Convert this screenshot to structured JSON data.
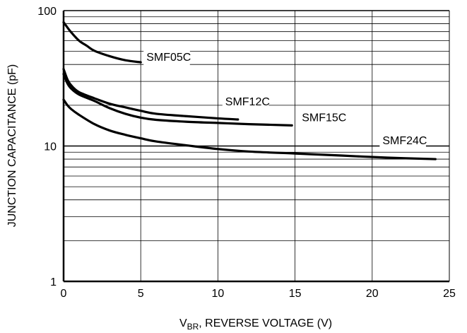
{
  "chart_data": {
    "type": "line",
    "title": "",
    "xlabel": {
      "main": "V",
      "subscript": "BR",
      "rest": ", REVERSE VOLTAGE (V)"
    },
    "ylabel": "JUNCTION CAPACITANCE (pF)",
    "xlim": [
      0,
      25
    ],
    "ylim": [
      1,
      100
    ],
    "yscale": "log",
    "grid": true,
    "x_ticks": [
      0,
      5,
      10,
      15,
      20,
      25
    ],
    "x_tick_labels": [
      "0",
      "5",
      "10",
      "15",
      "20",
      "25"
    ],
    "y_ticks": [
      1,
      10,
      100
    ],
    "y_tick_labels": [
      "1",
      "10",
      "100"
    ],
    "series": [
      {
        "name": "SMF05C",
        "x": [
          0,
          0.25,
          0.5,
          1,
          1.5,
          2,
          3,
          4,
          5
        ],
        "y": [
          82,
          75,
          69,
          60,
          55,
          50.5,
          46,
          43,
          41.5
        ]
      },
      {
        "name": "SMF12C",
        "x": [
          0,
          0.25,
          0.5,
          1,
          2,
          3,
          4,
          5,
          6,
          8,
          10,
          11.3
        ],
        "y": [
          37,
          31,
          28,
          25,
          22.5,
          20.5,
          19.3,
          18.2,
          17.3,
          16.6,
          16.0,
          15.7
        ]
      },
      {
        "name": "SMF15C",
        "x": [
          0,
          0.25,
          0.5,
          1,
          2,
          3,
          4,
          5,
          6,
          8,
          10,
          12,
          14.8
        ],
        "y": [
          34,
          29,
          26.5,
          24,
          21.5,
          19,
          17.3,
          16.2,
          15.6,
          15.1,
          14.8,
          14.5,
          14.2
        ]
      },
      {
        "name": "SMF24C",
        "x": [
          0,
          0.25,
          0.5,
          1,
          2,
          3,
          4,
          5,
          6,
          8,
          10,
          12,
          15,
          18,
          21,
          24.1
        ],
        "y": [
          22,
          20,
          18.7,
          17,
          14.5,
          13,
          12.1,
          11.4,
          10.8,
          10.1,
          9.5,
          9.1,
          8.8,
          8.5,
          8.2,
          8.0
        ]
      }
    ],
    "colors": {
      "line": "#000000",
      "grid": "#000000",
      "background": "#ffffff"
    }
  }
}
